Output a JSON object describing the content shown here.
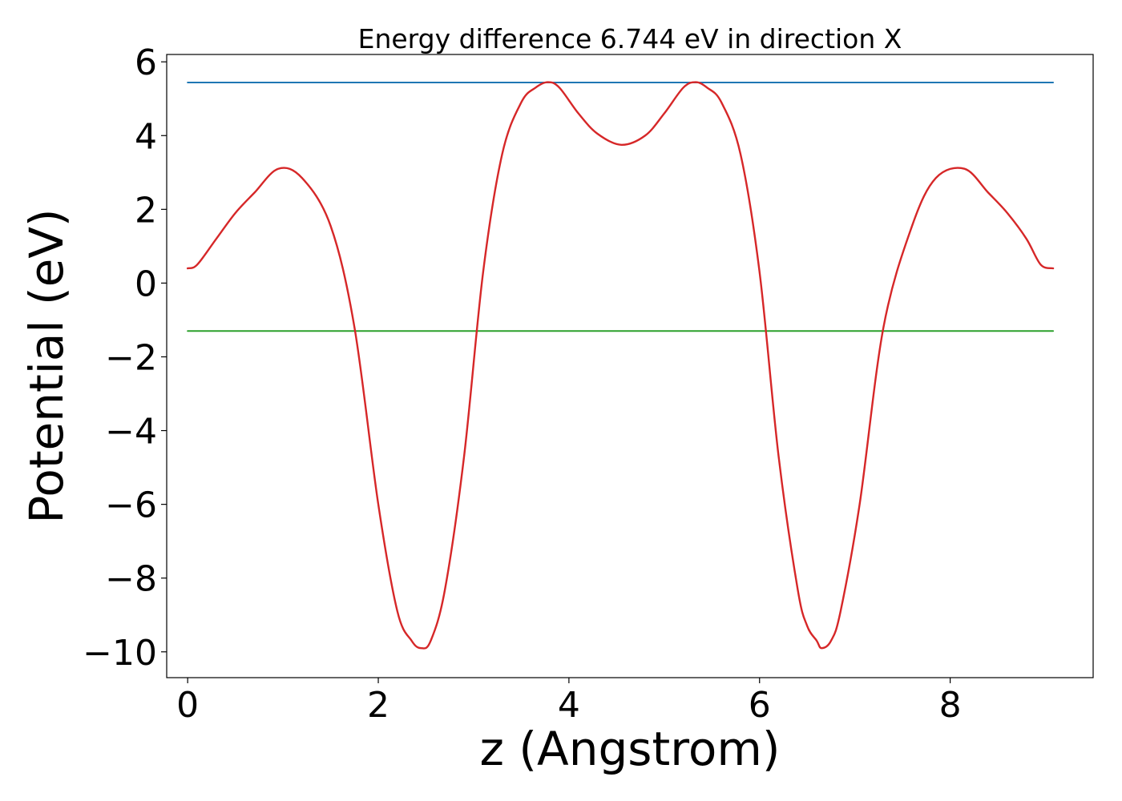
{
  "chart_data": {
    "type": "line",
    "title": "Energy difference 6.744 eV in direction X",
    "xlabel": "z (Angstrom)",
    "ylabel": "Potential (eV)",
    "xlim": [
      -0.22,
      9.5
    ],
    "ylim": [
      -10.7,
      6.2
    ],
    "xticks": [
      0,
      2,
      4,
      6,
      8
    ],
    "yticks": [
      6,
      4,
      2,
      0,
      -2,
      -4,
      -6,
      -8,
      -10
    ],
    "xtick_labels": [
      "0",
      "2",
      "4",
      "6",
      "8"
    ],
    "ytick_labels": [
      "6",
      "4",
      "2",
      "0",
      "−2",
      "−4",
      "−6",
      "−8",
      "−10"
    ],
    "grid": false,
    "legend": "none",
    "series": [
      {
        "color": "#d62728",
        "x": [
          0,
          0.1,
          0.3,
          0.5,
          0.7,
          0.95,
          1.2,
          1.5,
          1.75,
          2.0,
          2.2,
          2.35,
          2.45,
          2.55,
          2.7,
          2.9,
          3.1,
          3.3,
          3.5,
          3.65,
          3.78,
          3.9,
          4.1,
          4.3,
          4.55,
          4.8,
          5.0,
          5.2,
          5.33,
          5.45,
          5.6,
          5.8,
          6.0,
          6.2,
          6.4,
          6.5,
          6.6,
          6.65,
          6.75,
          6.85,
          7.05,
          7.3,
          7.6,
          7.85,
          8.15,
          8.4,
          8.6,
          8.8,
          8.95,
          9.08
        ],
        "y": [
          0.4,
          0.5,
          1.2,
          1.9,
          2.45,
          3.1,
          2.85,
          1.55,
          -1.2,
          -6.0,
          -8.9,
          -9.7,
          -9.9,
          -9.7,
          -8.3,
          -4.7,
          0.3,
          3.5,
          4.9,
          5.3,
          5.45,
          5.3,
          4.6,
          4.05,
          3.75,
          4.0,
          4.6,
          5.3,
          5.45,
          5.3,
          4.9,
          3.5,
          0.3,
          -4.7,
          -8.3,
          -9.3,
          -9.7,
          -9.9,
          -9.7,
          -8.9,
          -6.0,
          -1.2,
          1.55,
          2.85,
          3.1,
          2.45,
          1.9,
          1.2,
          0.5,
          0.4
        ]
      },
      {
        "color": "#1f77b4",
        "x": [
          0,
          9.08
        ],
        "y": [
          5.44,
          5.44
        ]
      },
      {
        "color": "#2ca02c",
        "x": [
          0,
          9.08
        ],
        "y": [
          -1.3,
          -1.3
        ]
      }
    ]
  }
}
